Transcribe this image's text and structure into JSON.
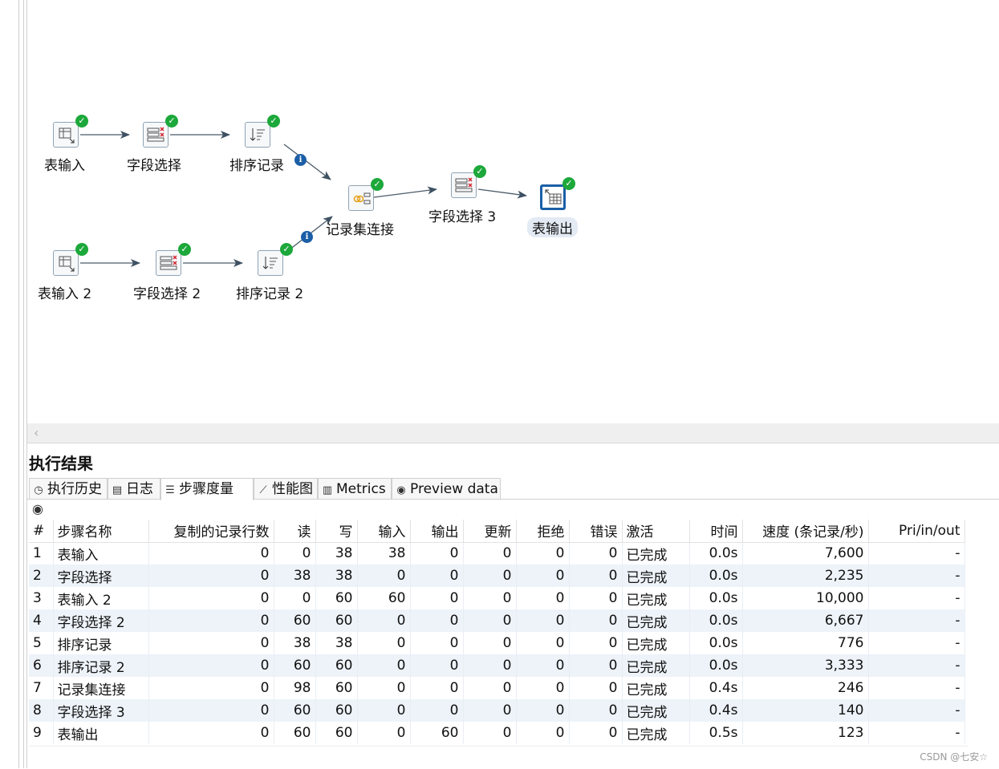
{
  "canvas": {
    "nodes": [
      {
        "id": "table-input-1",
        "label": "表输入",
        "icon": "table-input-icon"
      },
      {
        "id": "field-select-1",
        "label": "字段选择",
        "icon": "field-select-icon"
      },
      {
        "id": "sort-1",
        "label": "排序记录",
        "icon": "sort-icon"
      },
      {
        "id": "merge-join",
        "label": "记录集连接",
        "icon": "merge-join-icon"
      },
      {
        "id": "field-select-3",
        "label": "字段选择 3",
        "icon": "field-select-icon"
      },
      {
        "id": "table-output",
        "label": "表输出",
        "icon": "table-output-icon"
      },
      {
        "id": "table-input-2",
        "label": "表输入 2",
        "icon": "table-input-icon"
      },
      {
        "id": "field-select-2",
        "label": "字段选择 2",
        "icon": "field-select-icon"
      },
      {
        "id": "sort-2",
        "label": "排序记录 2",
        "icon": "sort-icon"
      }
    ],
    "status_icon": "check-icon",
    "info_glyph": "i"
  },
  "results": {
    "title": "执行结果",
    "tabs": [
      {
        "label": "执行历史",
        "icon": "history-icon"
      },
      {
        "label": "日志",
        "icon": "log-icon"
      },
      {
        "label": "步骤度量",
        "icon": "step-metrics-icon",
        "active": true
      },
      {
        "label": "性能图",
        "icon": "performance-chart-icon"
      },
      {
        "label": "Metrics",
        "icon": "metrics-icon"
      },
      {
        "label": "Preview data",
        "icon": "eye-icon"
      }
    ],
    "columns": [
      "#",
      "步骤名称",
      "复制的记录行数",
      "读",
      "写",
      "输入",
      "输出",
      "更新",
      "拒绝",
      "错误",
      "激活",
      "时间",
      "速度 (条记录/秒)",
      "Pri/in/out"
    ],
    "rows": [
      [
        "1",
        "表输入",
        "0",
        "0",
        "38",
        "38",
        "0",
        "0",
        "0",
        "0",
        "已完成",
        "0.0s",
        "7,600",
        "-"
      ],
      [
        "2",
        "字段选择",
        "0",
        "38",
        "38",
        "0",
        "0",
        "0",
        "0",
        "0",
        "已完成",
        "0.0s",
        "2,235",
        "-"
      ],
      [
        "3",
        "表输入 2",
        "0",
        "0",
        "60",
        "60",
        "0",
        "0",
        "0",
        "0",
        "已完成",
        "0.0s",
        "10,000",
        "-"
      ],
      [
        "4",
        "字段选择 2",
        "0",
        "60",
        "60",
        "0",
        "0",
        "0",
        "0",
        "0",
        "已完成",
        "0.0s",
        "6,667",
        "-"
      ],
      [
        "5",
        "排序记录",
        "0",
        "38",
        "38",
        "0",
        "0",
        "0",
        "0",
        "0",
        "已完成",
        "0.0s",
        "776",
        "-"
      ],
      [
        "6",
        "排序记录 2",
        "0",
        "60",
        "60",
        "0",
        "0",
        "0",
        "0",
        "0",
        "已完成",
        "0.0s",
        "3,333",
        "-"
      ],
      [
        "7",
        "记录集连接",
        "0",
        "98",
        "60",
        "0",
        "0",
        "0",
        "0",
        "0",
        "已完成",
        "0.4s",
        "246",
        "-"
      ],
      [
        "8",
        "字段选择 3",
        "0",
        "60",
        "60",
        "0",
        "0",
        "0",
        "0",
        "0",
        "已完成",
        "0.4s",
        "140",
        "-"
      ],
      [
        "9",
        "表输出",
        "0",
        "60",
        "60",
        "0",
        "60",
        "0",
        "0",
        "0",
        "已完成",
        "0.5s",
        "123",
        "-"
      ]
    ]
  },
  "watermark": "CSDN @七安☆",
  "colors": {
    "accent": "#1b5fa6",
    "ok": "#1ca83a",
    "row_alt": "#edf3f9",
    "hop": "#4a5a6a"
  }
}
